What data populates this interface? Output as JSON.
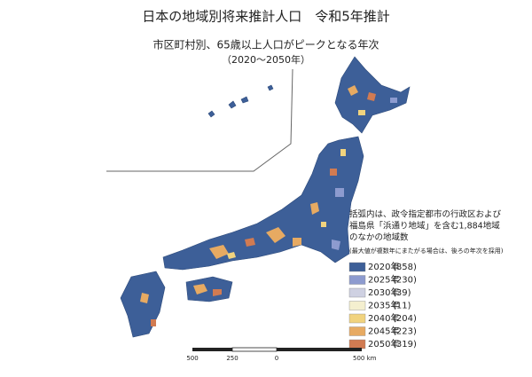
{
  "header": {
    "title": "日本の地域別将来推計人口　令和5年推計",
    "subtitle": "市区町村別、65歳以上人口がピークとなる年次",
    "period": "（2020～2050年）"
  },
  "note": {
    "lines": [
      "括弧内は、政令指定都市の行政区および",
      "福島県「浜通り地域」を含む1,884地域",
      "のなかの地域数"
    ],
    "small": "(最大値が複数年にまたがる場合は、後ろの年次を採用)"
  },
  "legend": [
    {
      "label": "2020年",
      "count": "(858)",
      "color": "#3d5f98"
    },
    {
      "label": "2025年",
      "count": "(230)",
      "color": "#8d9bcf"
    },
    {
      "label": "2030年",
      "count": "(39)",
      "color": "#cfd1e2"
    },
    {
      "label": "2035年",
      "count": "(11)",
      "color": "#f4efcf"
    },
    {
      "label": "2040年",
      "count": "(204)",
      "color": "#f1d37e"
    },
    {
      "label": "2045年",
      "count": "(223)",
      "color": "#e7aa62"
    },
    {
      "label": "2050年",
      "count": "(319)",
      "color": "#d17b52"
    }
  ],
  "scale": {
    "labels": [
      "500",
      "250",
      "0",
      "500 km"
    ]
  }
}
